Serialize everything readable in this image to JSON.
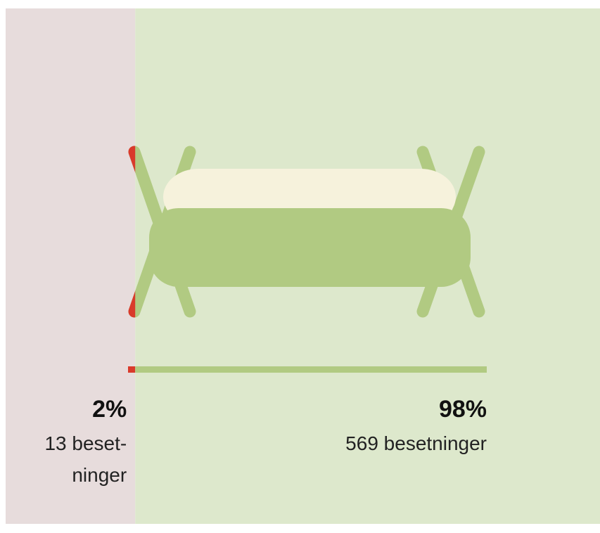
{
  "chart_data": {
    "type": "split",
    "values": [
      2,
      98
    ],
    "value_labels": [
      "2%",
      "98%"
    ],
    "counts": [
      13,
      569
    ],
    "count_labels": [
      "13 beset­ninger",
      "569 besetninger"
    ],
    "colors": [
      "#d93a2b",
      "#b1ca82"
    ],
    "background_colors": [
      "#e7dcdc",
      "#dde8cc"
    ]
  }
}
